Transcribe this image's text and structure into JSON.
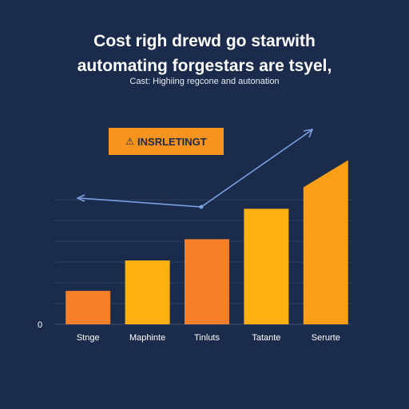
{
  "chart_data": {
    "type": "bar",
    "title_line1": "Cost righ drewd go starwith",
    "title_line2": "automating forgestars are tsyel,",
    "subtitle": "Cast: Highiing regcone and autonation",
    "badge": {
      "icon": "warning-icon",
      "label": "INSRLETINGT"
    },
    "categories": [
      "Stnge",
      "Maphinte",
      "Tinluts",
      "Tatante",
      "Serurte"
    ],
    "values": [
      11,
      21,
      28,
      38,
      54
    ],
    "ylim": [
      0,
      62
    ],
    "ytick_zero": "0",
    "grid": true,
    "colors": [
      "#f77f27",
      "#fcb012",
      "#f77f27",
      "#fcb012",
      "#f99f16"
    ],
    "trend_line": {
      "color": "#7b9fe0"
    }
  }
}
